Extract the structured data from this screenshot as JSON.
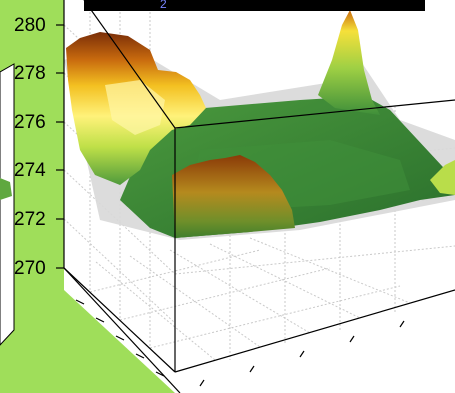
{
  "figure": {
    "background_color": "#9fde5a",
    "axes_background": "#ffffff",
    "title_bar_color": "#000000",
    "title_fragment": "2"
  },
  "chart_data": {
    "type": "surface",
    "title": "",
    "xlabel": "",
    "ylabel": "",
    "zlabel": "",
    "z_ticks": [
      "270",
      "272",
      "274",
      "276",
      "278",
      "280"
    ],
    "zlim": [
      270,
      280
    ],
    "grid": true,
    "colormap": [
      "#1f6b2a",
      "#3f8f3a",
      "#7cc040",
      "#d9ee4a",
      "#fff24a",
      "#f3c021",
      "#c86a0e",
      "#7a2e08"
    ]
  }
}
